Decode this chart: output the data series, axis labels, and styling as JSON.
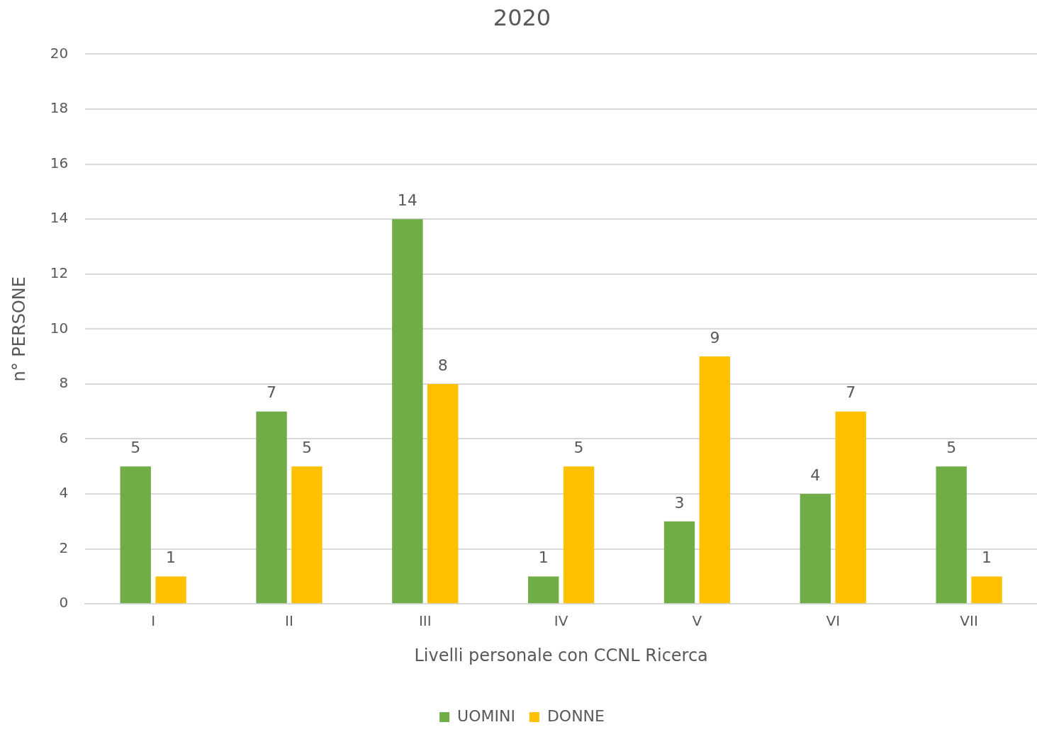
{
  "chart_data": {
    "type": "bar",
    "title": "2020",
    "xlabel": "Livelli personale con CCNL Ricerca",
    "ylabel": "n° PERSONE",
    "categories": [
      "I",
      "II",
      "III",
      "IV",
      "V",
      "VI",
      "VII"
    ],
    "series": [
      {
        "name": "UOMINI",
        "color": "#70ad47",
        "values": [
          5,
          7,
          14,
          1,
          3,
          4,
          5
        ]
      },
      {
        "name": "DONNE",
        "color": "#ffc000",
        "values": [
          1,
          5,
          8,
          5,
          9,
          7,
          1
        ]
      }
    ],
    "ylim": [
      0,
      20
    ],
    "yticks": [
      0,
      2,
      4,
      6,
      8,
      10,
      12,
      14,
      16,
      18,
      20
    ],
    "grid": "y",
    "legend": "bottom",
    "data_labels": true
  }
}
